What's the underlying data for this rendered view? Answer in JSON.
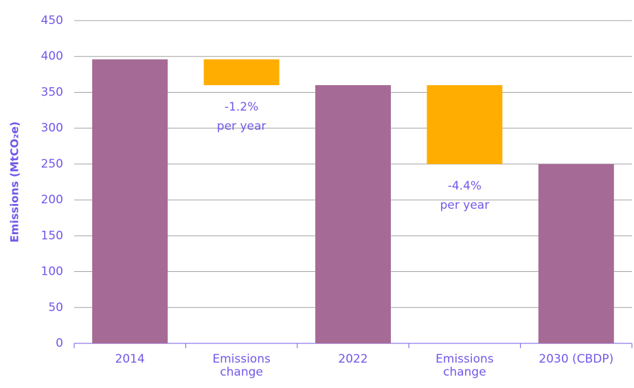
{
  "chart_data": {
    "type": "waterfall",
    "categories": [
      "2014",
      "Emissions change",
      "2022",
      "Emissions change",
      "2030 (CBDP)"
    ],
    "values": [
      396,
      -36,
      360,
      -110,
      250
    ],
    "measures": [
      "total",
      "relative",
      "total",
      "relative",
      "total"
    ],
    "colors": {
      "total": "#a66a96",
      "relative": "#ffad00"
    },
    "annotations": [
      [
        "-1.2%",
        "per year"
      ],
      [
        "-4.4%",
        "per year"
      ]
    ],
    "ylabel": "Emissions (MtCO₂e)",
    "ylim": [
      0,
      450
    ],
    "yticks": [
      0,
      50,
      100,
      150,
      200,
      250,
      300,
      350,
      400,
      450
    ],
    "grid": true
  }
}
